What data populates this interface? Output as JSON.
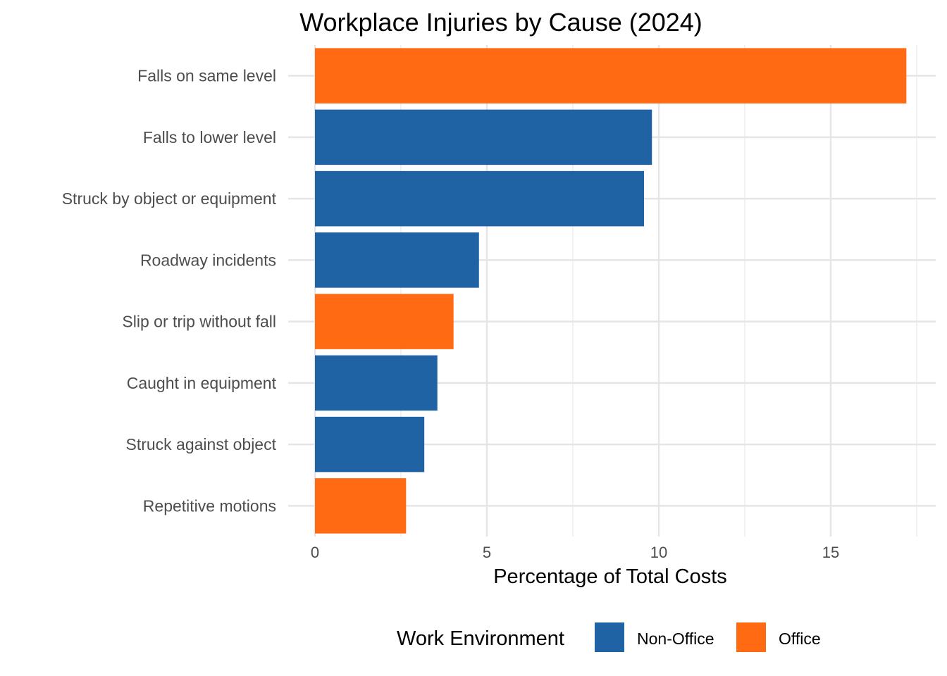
{
  "chart_data": {
    "type": "bar",
    "orientation": "horizontal",
    "title": "Workplace Injuries by Cause (2024)",
    "xlabel": "Percentage of Total Costs",
    "ylabel": "",
    "xlim": [
      0,
      17.5
    ],
    "x_ticks": [
      0,
      5,
      10,
      15
    ],
    "grid": true,
    "categories": [
      "Falls on same level",
      "Falls to lower level",
      "Struck by object or equipment",
      "Roadway incidents",
      "Slip or trip without fall",
      "Caught in equipment",
      "Struck against object",
      "Repetitive motions"
    ],
    "values": [
      17.2,
      9.8,
      9.57,
      4.77,
      4.03,
      3.56,
      3.18,
      2.65
    ],
    "groups": [
      "Office",
      "Non-Office",
      "Non-Office",
      "Non-Office",
      "Office",
      "Non-Office",
      "Non-Office",
      "Office"
    ],
    "legend": {
      "title": "Work Environment",
      "placement": "bottom",
      "entries": [
        {
          "name": "Non-Office",
          "color": "#1f63a5"
        },
        {
          "name": "Office",
          "color": "#ff6a13"
        }
      ]
    }
  }
}
